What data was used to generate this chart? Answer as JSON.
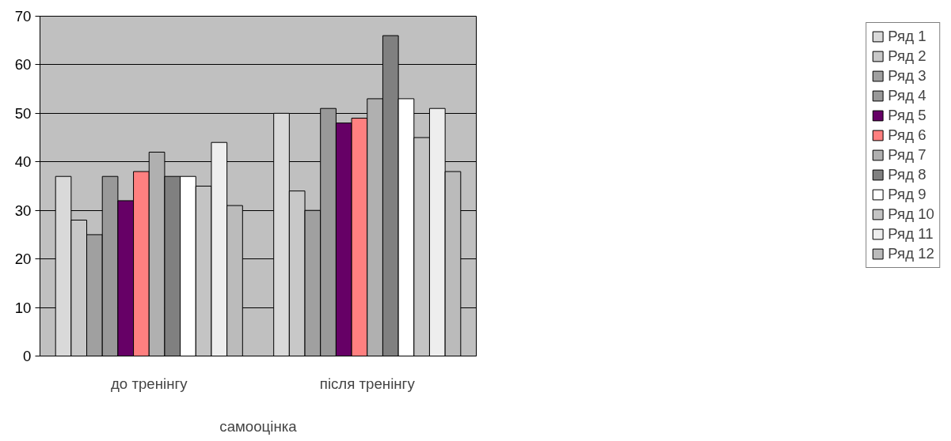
{
  "chart_data": {
    "type": "bar",
    "xlabel": "самооцінка",
    "categories": [
      "до тренінгу",
      "після тренінгу"
    ],
    "series": [
      {
        "name": "Ряд 1",
        "color": "#d9d9d9",
        "values": [
          37,
          50
        ]
      },
      {
        "name": "Ряд 2",
        "color": "#c8c8c8",
        "values": [
          28,
          34
        ]
      },
      {
        "name": "Ряд 3",
        "color": "#a0a0a0",
        "values": [
          25,
          30
        ]
      },
      {
        "name": "Ряд 4",
        "color": "#999999",
        "values": [
          37,
          51
        ]
      },
      {
        "name": "Ряд 5",
        "color": "#660066",
        "values": [
          32,
          48
        ]
      },
      {
        "name": "Ряд 6",
        "color": "#ff8080",
        "values": [
          38,
          49
        ]
      },
      {
        "name": "Ряд 7",
        "color": "#b0b0b0",
        "values": [
          42,
          53
        ]
      },
      {
        "name": "Ряд 8",
        "color": "#808080",
        "values": [
          37,
          66
        ]
      },
      {
        "name": "Ряд 9",
        "color": "#ffffff",
        "values": [
          37,
          53
        ]
      },
      {
        "name": "Ряд 10",
        "color": "#c4c4c4",
        "values": [
          35,
          45
        ]
      },
      {
        "name": "Ряд 11",
        "color": "#eeeeee",
        "values": [
          44,
          51
        ]
      },
      {
        "name": "Ряд 12",
        "color": "#bbbbbb",
        "values": [
          31,
          38
        ]
      }
    ],
    "ylim": [
      0,
      70
    ],
    "yticks": [
      0,
      10,
      20,
      30,
      40,
      50,
      60,
      70
    ],
    "grid": "y",
    "legend": "right"
  }
}
